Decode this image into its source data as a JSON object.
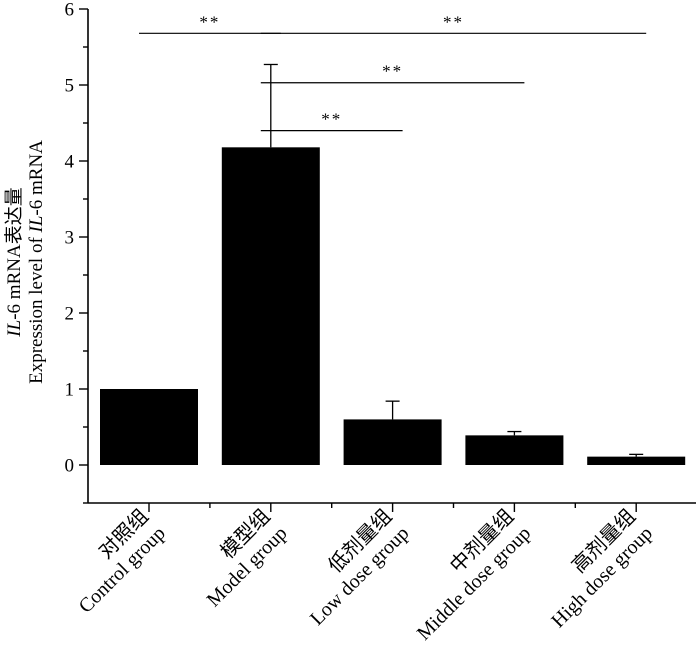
{
  "chart_data": {
    "type": "bar",
    "categories": [
      {
        "zh": "对照组",
        "en": "Control group"
      },
      {
        "zh": "模型组",
        "en": "Model group"
      },
      {
        "zh": "低剂量组",
        "en": "Low dose group"
      },
      {
        "zh": "中剂量组",
        "en": "Middle dose group"
      },
      {
        "zh": "高剂量组",
        "en": "High dose group"
      }
    ],
    "values": [
      1.0,
      4.18,
      0.6,
      0.39,
      0.11
    ],
    "errors": [
      0.0,
      1.09,
      0.24,
      0.05,
      0.03
    ],
    "ylim": [
      -0.5,
      6
    ],
    "yticks": [
      0,
      1,
      2,
      3,
      4,
      5,
      6
    ],
    "ylabel": {
      "line1_italic": "IL",
      "line1_rest": "-6 mRNA表达量",
      "line2_prefix": "Expression level of ",
      "line2_italic": "IL",
      "line2_suffix": "-6 mRNA"
    },
    "bar_color": "#000000",
    "significance": [
      {
        "from": 0,
        "to": 1,
        "y": 5.68,
        "label": "**"
      },
      {
        "from": 1,
        "to": 4,
        "y": 5.68,
        "label": "**"
      },
      {
        "from": 1,
        "to": 3,
        "y": 5.03,
        "label": "**"
      },
      {
        "from": 1,
        "to": 2,
        "y": 4.4,
        "label": "**"
      }
    ]
  }
}
